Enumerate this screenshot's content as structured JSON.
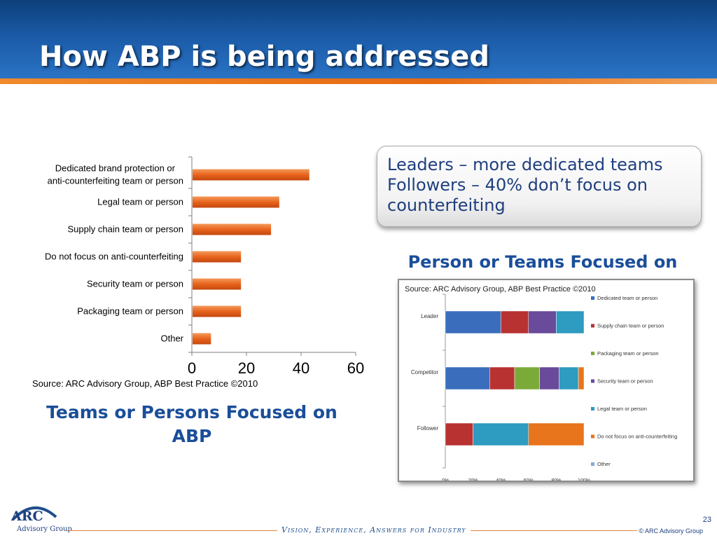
{
  "slide": {
    "title": "How ABP is being addressed",
    "callout_text": "Leaders – more dedicated teams Followers – 40% don’t focus on counterfeiting",
    "left_caption_line1": "Teams or Persons Focused on",
    "left_caption_line2": "ABP",
    "right_caption": "Person or Teams Focused on",
    "source_note": "Source: ARC Advisory Group, ABP Best Practice ©2010",
    "footer_tagline": "Vision, Experience, Answers for Industry",
    "page_number": "23",
    "copyright": "© ARC Advisory Group",
    "logo_text": "ARC",
    "logo_subtext": "Advisory Group"
  },
  "colors": {
    "header_blue": "#1a5aa6",
    "accent_orange": "#e8641c",
    "caption_blue": "#1a4e9a",
    "series": [
      "#3a6ebd",
      "#b83232",
      "#7aab38",
      "#6a4a9a",
      "#2e9bc0",
      "#e8741c",
      "#8aa8d8"
    ]
  },
  "chart_data": [
    {
      "type": "bar",
      "orientation": "horizontal",
      "categories": [
        "Dedicated brand protection or anti-counterfeiting team or person",
        "Legal team or person",
        "Supply chain team or person",
        "Do not focus on anti-counterfeiting",
        "Security team or person",
        "Packaging team or person",
        "Other"
      ],
      "category_lines": [
        [
          "Dedicated brand protection or",
          "anti-counterfeiting team or person"
        ],
        [
          "Legal team or person"
        ],
        [
          "Supply chain team or person"
        ],
        [
          "Do not focus on anti-counterfeiting"
        ],
        [
          "Security team or person"
        ],
        [
          "Packaging team or person"
        ],
        [
          "Other"
        ]
      ],
      "values": [
        43,
        32,
        29,
        18,
        18,
        18,
        7
      ],
      "xlim": [
        0,
        60
      ],
      "xticks": [
        "0",
        "20",
        "40",
        "60"
      ],
      "title": "",
      "xlabel": "",
      "ylabel": "",
      "grid": false,
      "legend": "none",
      "color": "#e8641c"
    },
    {
      "type": "bar",
      "orientation": "horizontal",
      "stacked": "percent",
      "title": "Source: ARC Advisory Group, ABP Best Practice ©2010",
      "categories": [
        "Leader",
        "Competitor",
        "Follower"
      ],
      "series": [
        {
          "name": "Dedicated team or person",
          "values": [
            40,
            32,
            0
          ]
        },
        {
          "name": "Supply chain team or person",
          "values": [
            20,
            18,
            20
          ]
        },
        {
          "name": "Packaging team or person",
          "values": [
            0,
            18,
            0
          ]
        },
        {
          "name": "Security team or person",
          "values": [
            20,
            14,
            0
          ]
        },
        {
          "name": "Legal team or person",
          "values": [
            20,
            14,
            40
          ]
        },
        {
          "name": "Do not focus on anti-counterfeiting",
          "values": [
            0,
            4,
            40
          ]
        },
        {
          "name": "Other",
          "values": [
            0,
            0,
            0
          ]
        }
      ],
      "xlim": [
        0,
        100
      ],
      "xticks": [
        "0%",
        "20%",
        "40%",
        "60%",
        "80%",
        "100%"
      ],
      "legend": "right",
      "grid": false
    }
  ]
}
